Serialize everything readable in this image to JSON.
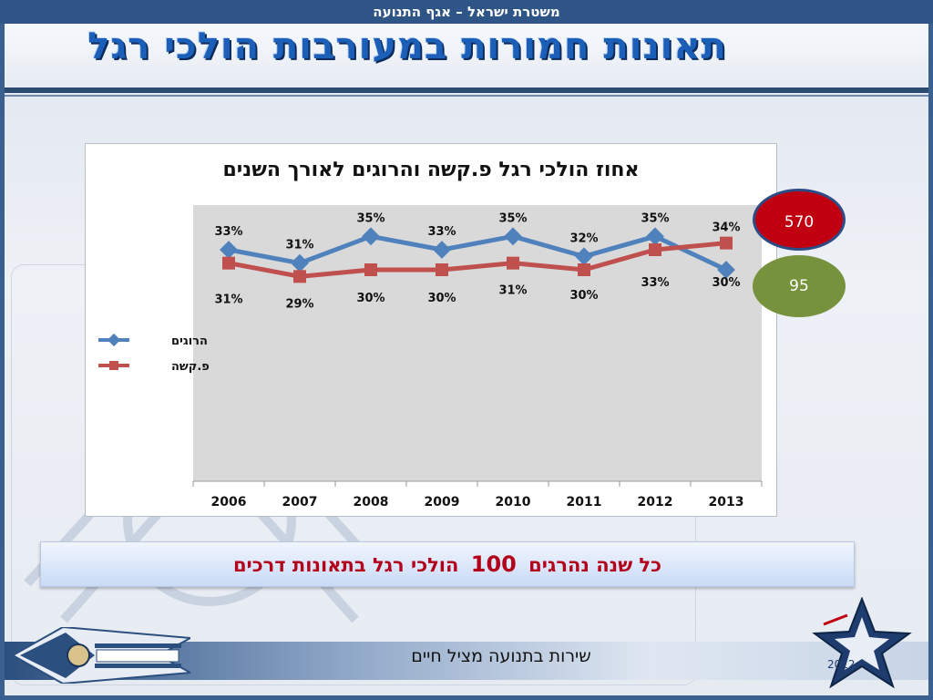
{
  "header": {
    "org": "משטרת ישראל – אגף התנועה",
    "title": "תאונות חמורות במעורבות הולכי רגל"
  },
  "colors": {
    "series_killed": "#4f81bd",
    "series_severe": "#c0504d",
    "bubble_red": "#c00010",
    "bubble_green": "#77923c"
  },
  "bubbles": {
    "red": "570",
    "green": "95"
  },
  "banner": {
    "before": "כל שנה נהרגים",
    "number": "100",
    "after": "הולכי רגל בתאונות דרכים"
  },
  "footer": {
    "slogan": "שירות בתנועה מציל חיים",
    "logo_year": "2012"
  },
  "chart_data": {
    "type": "line",
    "title": "אחוז הולכי רגל פ.קשה והרוגים לאורך השנים",
    "categories": [
      "2006",
      "2007",
      "2008",
      "2009",
      "2010",
      "2011",
      "2012",
      "2013"
    ],
    "ylim": [
      0,
      40
    ],
    "legend_position": "left",
    "grid": false,
    "series": [
      {
        "name": "הרוגים",
        "values": [
          33,
          31,
          35,
          33,
          35,
          32,
          35,
          30
        ],
        "labels": [
          "33%",
          "31%",
          "35%",
          "33%",
          "35%",
          "32%",
          "35%",
          "30%"
        ],
        "color": "#4f81bd"
      },
      {
        "name": "פ.קשה",
        "values": [
          31,
          29,
          30,
          30,
          31,
          30,
          33,
          34
        ],
        "labels": [
          "31%",
          "29%",
          "30%",
          "30%",
          "31%",
          "30%",
          "33%",
          "34%"
        ],
        "color": "#c0504d"
      }
    ]
  }
}
